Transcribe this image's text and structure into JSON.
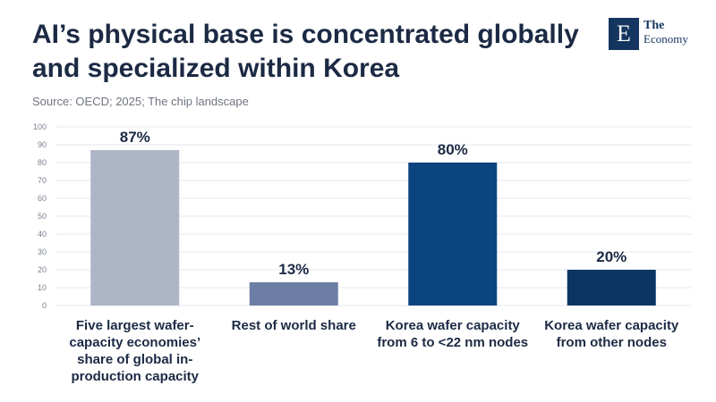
{
  "header": {
    "title_line1": "AI’s physical base is concentrated globally",
    "title_line2": "and specialized within Korea",
    "source": "Source: OECD; 2025; The chip landscape"
  },
  "logo": {
    "mark": "E",
    "line1": "The",
    "line2": "Economy"
  },
  "chart_data": {
    "type": "bar",
    "categories": [
      "Five largest wafer-capacity economies’ share of global in-production capacity",
      "Rest of world share",
      "Korea wafer capacity from 6 to <22 nm nodes",
      "Korea wafer capacity from other nodes"
    ],
    "category_lines": [
      [
        "Five largest wafer-",
        "capacity economies’",
        "share of global in-",
        "production capacity"
      ],
      [
        "Rest of world share"
      ],
      [
        "Korea wafer capacity",
        "from 6 to <22 nm nodes"
      ],
      [
        "Korea wafer capacity",
        "from other nodes"
      ]
    ],
    "values": [
      87,
      13,
      80,
      20
    ],
    "data_labels": [
      "87%",
      "13%",
      "80%",
      "20%"
    ],
    "colors": [
      "#aeb5c6",
      "#6c7ea3",
      "#0c447f",
      "#0a3563"
    ],
    "ylim": [
      0,
      100
    ],
    "yticks": [
      0,
      10,
      20,
      30,
      40,
      50,
      60,
      70,
      80,
      90,
      100
    ],
    "grid": true,
    "title": "AI’s physical base is concentrated globally and specialized within Korea",
    "xlabel": "",
    "ylabel": ""
  }
}
